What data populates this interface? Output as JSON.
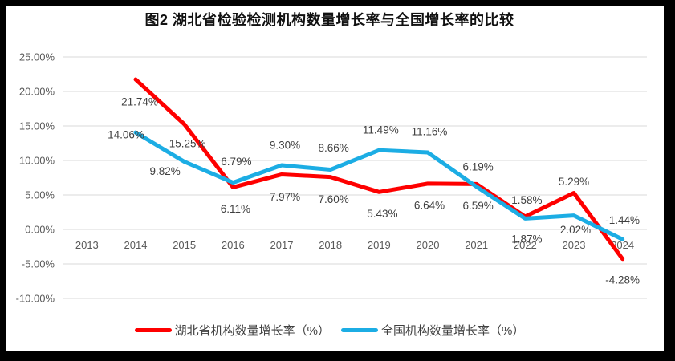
{
  "window": {
    "frame_color": "#000000",
    "background_color": "#ffffff"
  },
  "chart_data": {
    "type": "line",
    "title": "图2  湖北省检验检测机构数量增长率与全国增长率的比较",
    "categories": [
      "2013",
      "2014",
      "2015",
      "2016",
      "2017",
      "2018",
      "2019",
      "2020",
      "2021",
      "2022",
      "2023",
      "2024"
    ],
    "series": [
      {
        "key": "hubei",
        "name": "湖北省机构数量增长率（%）",
        "color": "#FE0000",
        "values": [
          null,
          21.74,
          15.25,
          6.11,
          7.97,
          7.6,
          5.43,
          6.64,
          6.59,
          1.87,
          5.29,
          -4.28
        ],
        "labels": [
          null,
          "21.74%",
          "15.25%",
          "6.11%",
          "7.97%",
          "7.60%",
          "5.43%",
          "6.64%",
          "6.59%",
          "1.87%",
          "5.29%",
          "-4.28%"
        ]
      },
      {
        "key": "national",
        "name": "全国机构数量增长率（%）",
        "color": "#1CADE4",
        "values": [
          null,
          14.06,
          9.82,
          6.79,
          9.3,
          8.66,
          11.49,
          11.16,
          6.19,
          1.58,
          2.02,
          -1.44
        ],
        "labels": [
          null,
          "14.06%",
          "9.82%",
          "6.79%",
          "9.30%",
          "8.66%",
          "11.49%",
          "11.16%",
          "6.19%",
          "1.58%",
          "2.02%",
          "-1.44%"
        ]
      }
    ],
    "y_axis": {
      "ticks": [
        {
          "label": "25.00%",
          "value": 25
        },
        {
          "label": "20.00%",
          "value": 20
        },
        {
          "label": "15.00%",
          "value": 15
        },
        {
          "label": "10.00%",
          "value": 10
        },
        {
          "label": "5.00%",
          "value": 5
        },
        {
          "label": "0.00%",
          "value": 0
        },
        {
          "label": "-5.00%",
          "value": -5
        },
        {
          "label": "-10.00%",
          "value": -10
        }
      ]
    },
    "ylim": [
      -10,
      25
    ],
    "xlabel": "",
    "ylabel": "",
    "grid": true,
    "legend_position": "bottom"
  },
  "colors": {
    "gridline": "#D9D9D9",
    "axis_text": "#595959",
    "data_label": "#3F3F3F",
    "title_text": "#111111"
  }
}
